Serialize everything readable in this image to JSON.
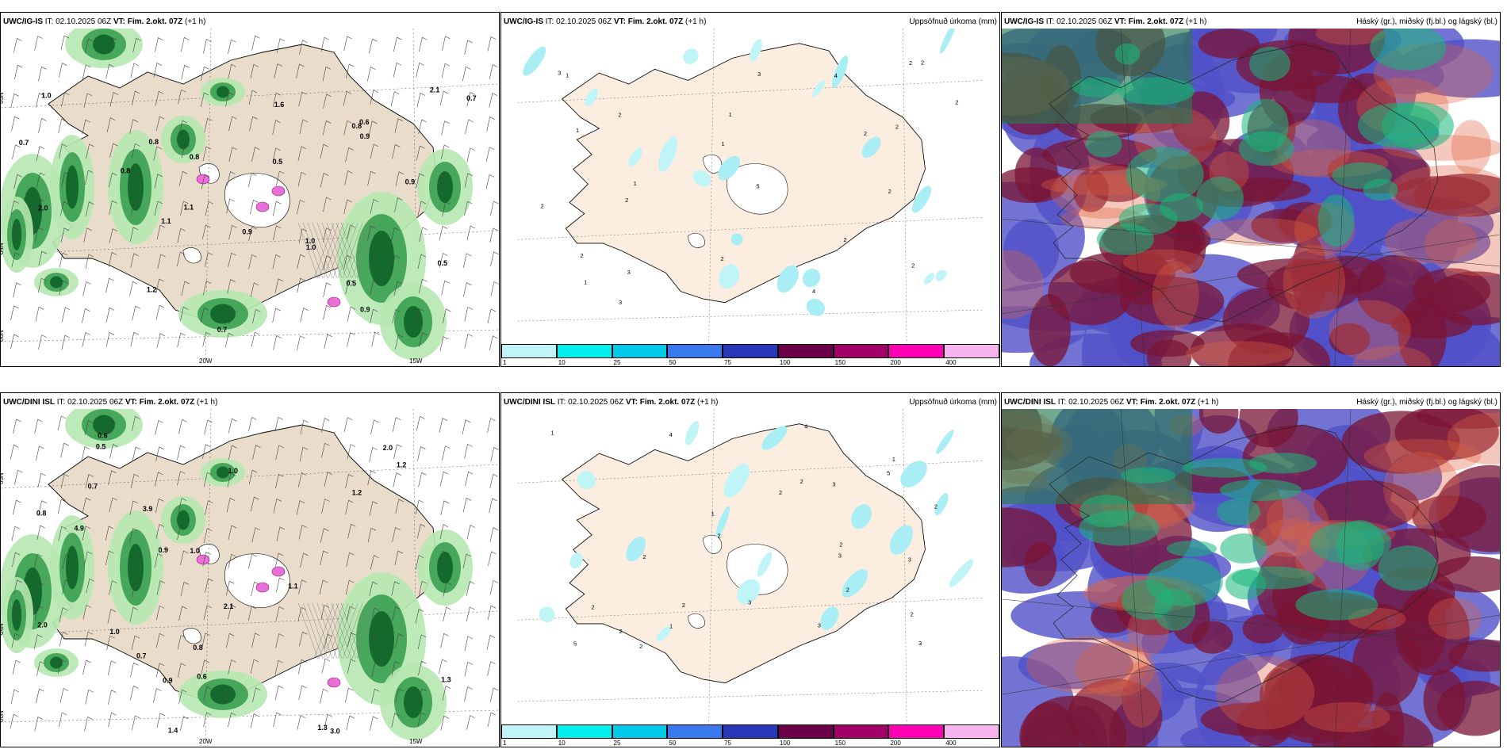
{
  "rows": [
    {
      "model": "UWC/IG-IS",
      "panels": [
        {
          "model": "UWC/IG-IS",
          "it": "IT: 02.10.2025 06Z",
          "vt": "VT: Fim. 2.okt. 07Z",
          "lead": "(+1 h)",
          "right": ""
        },
        {
          "model": "UWC/IG-IS",
          "it": "IT: 02.10.2025 06Z",
          "vt": "VT: Fim. 2.okt. 07Z",
          "lead": "(+1 h)",
          "right": "Uppsöfnuð úrkoma (mm)"
        },
        {
          "model": "UWC/IG-IS",
          "it": "IT: 02.10.2025 06Z",
          "vt": "VT: Fim. 2.okt. 07Z",
          "lead": "(+1 h)",
          "right": "Háský (gr.), miðský (fj.bl.) og lágský (bl.)"
        }
      ],
      "precip_labels": [
        "0.6",
        "0.7",
        "0.8",
        "0.9",
        "1.0",
        "1.2",
        "1.6",
        "2.1",
        "0.5",
        "0.8",
        "0.9",
        "1.1",
        "0.7",
        "0.8",
        "0.5",
        "2.0",
        "0.8",
        "1.0",
        "0.9",
        "1.0",
        "0.5",
        "0.7",
        "1.1",
        "0.9"
      ],
      "accum_labels": [
        "3",
        "3",
        "5",
        "2",
        "2",
        "2",
        "1",
        "1",
        "2",
        "2",
        "4",
        "2",
        "1",
        "2",
        "4",
        "2",
        "2",
        "1",
        "3",
        "1",
        "2",
        "3",
        "2",
        "1",
        "2",
        "2"
      ]
    },
    {
      "model": "UWC/DINI ISL",
      "panels": [
        {
          "model": "UWC/DINI ISL",
          "it": "IT: 02.10.2025 06Z",
          "vt": "VT: Fim. 2.okt. 07Z",
          "lead": "(+1 h)",
          "right": ""
        },
        {
          "model": "UWC/DINI ISL",
          "it": "IT: 02.10.2025 06Z",
          "vt": "VT: Fim. 2.okt. 07Z",
          "lead": "(+1 h)",
          "right": "Uppsöfnuð úrkoma (mm)"
        },
        {
          "model": "UWC/DINI ISL",
          "it": "IT: 02.10.2025 06Z",
          "vt": "VT: Fim. 2.okt. 07Z",
          "lead": "(+1 h)",
          "right": "Háský (gr.), miðský (fj.bl.) og lágský (bl.)"
        }
      ],
      "precip_labels": [
        "0.7",
        "3.0",
        "3.9",
        "4.9",
        "0.5",
        "0.9",
        "1.0",
        "1.3",
        "2.0",
        "1.2",
        "1.0",
        "0.8",
        "1.4",
        "1.3",
        "0.6",
        "2.0",
        "1.0",
        "0.6",
        "0.9",
        "0.7",
        "1.2",
        "2.1",
        "1.1",
        "0.8"
      ],
      "accum_labels": [
        "2",
        "3",
        "4",
        "5",
        "2",
        "2",
        "3",
        "3",
        "5",
        "4",
        "3",
        "2",
        "2",
        "3",
        "2",
        "1",
        "2",
        "1",
        "1",
        "2",
        "2",
        "1",
        "2",
        "3",
        "2",
        "2"
      ]
    }
  ],
  "lat_labels": [
    "65N",
    "64N",
    "66N"
  ],
  "lon_labels": [
    "20W",
    "15W"
  ],
  "colorbar": {
    "ticks": [
      "1",
      "10",
      "25",
      "50",
      "75",
      "100",
      "150",
      "200",
      "400"
    ],
    "colors": [
      "#bff5f7",
      "#00f0f0",
      "#00c8e8",
      "#3a78ee",
      "#2838b8",
      "#6a0048",
      "#a00068",
      "#ff00b4",
      "#f8b4ee"
    ]
  },
  "colors": {
    "land": "#eadccb",
    "land_accum": "#fbeee0",
    "precip_light": "#b6e8b0",
    "precip_mid": "#3aa050",
    "precip_dark": "#0e6428",
    "snow": "#e870d8",
    "cloud_high": "#2a7a52",
    "cloud_mid": "#7a1434",
    "cloud_low": "#5050c8"
  }
}
